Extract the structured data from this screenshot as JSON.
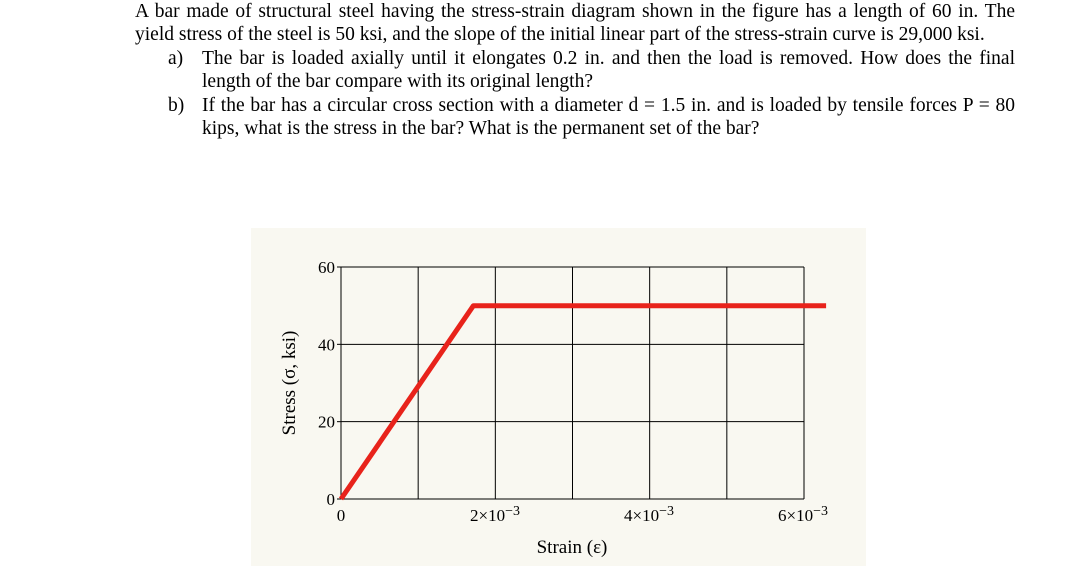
{
  "problem": {
    "intro": "A bar made of structural steel having the stress-strain diagram shown in the figure has a length of 60 in. The yield stress of the steel is 50 ksi, and the slope of the initial linear part of the stress-strain curve is 29,000 ksi.",
    "parts": [
      {
        "label": "a)",
        "text": "The bar is loaded axially until it elongates 0.2 in. and then the load is removed. How does the final length of the bar compare with its original length?"
      },
      {
        "label": "b)",
        "text": "If the bar has a circular cross section with a diameter d = 1.5 in. and is loaded by tensile forces P = 80 kips, what is the stress in the bar? What is the permanent set of the bar?"
      }
    ]
  },
  "chart_data": {
    "type": "line",
    "title": "",
    "xlabel": "Strain (ε)",
    "ylabel": "Stress (σ, ksi)",
    "xlim": [
      0,
      0.006
    ],
    "ylim": [
      0,
      60
    ],
    "grid": true,
    "x_ticks": [
      {
        "value": 0,
        "mantissa": "0",
        "exp": ""
      },
      {
        "value": 0.002,
        "mantissa": "2×10",
        "exp": "−3"
      },
      {
        "value": 0.004,
        "mantissa": "4×10",
        "exp": "−3"
      },
      {
        "value": 0.006,
        "mantissa": "6×10",
        "exp": "−3"
      }
    ],
    "y_ticks": [
      "0",
      "20",
      "40",
      "60"
    ],
    "series": [
      {
        "color": "#e8231b",
        "x": [
          0,
          0.00172,
          0.0063
        ],
        "y": [
          0,
          50,
          50
        ]
      }
    ]
  }
}
